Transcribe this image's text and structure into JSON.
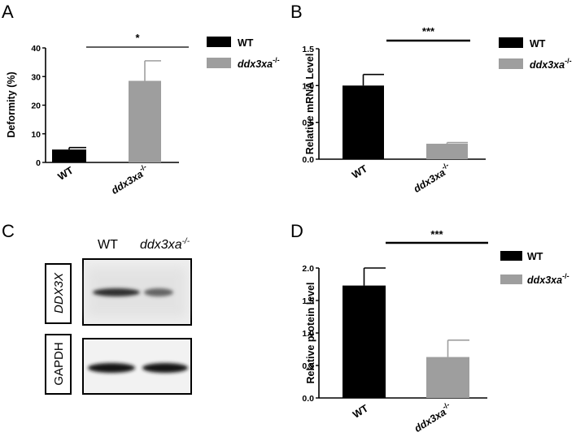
{
  "chart_data": [
    {
      "panel": "A",
      "type": "bar",
      "categories": [
        "WT",
        "ddx3xa"
      ],
      "category_superscripts": [
        "",
        "-/-"
      ],
      "values": [
        4.5,
        28.5
      ],
      "errors": [
        0.7,
        7.0
      ],
      "colors": [
        "#000000",
        "#9e9e9e"
      ],
      "ylabel": "Deformity (%)",
      "ylim": [
        0,
        40
      ],
      "yticks": [
        0,
        10,
        20,
        30,
        40
      ],
      "yticklabels": [
        "0",
        "10",
        "20",
        "30",
        "40"
      ],
      "significance": "*",
      "legend": [
        {
          "name": "WT",
          "sup": "",
          "color": "#000000"
        },
        {
          "name": "ddx3xa",
          "sup": "-/-",
          "color": "#9e9e9e"
        }
      ],
      "legend_position": "right"
    },
    {
      "panel": "B",
      "type": "bar",
      "categories": [
        "WT",
        "ddx3xa"
      ],
      "category_superscripts": [
        "",
        "-/-"
      ],
      "values": [
        1.0,
        0.21
      ],
      "errors": [
        0.15,
        0.015
      ],
      "colors": [
        "#000000",
        "#9e9e9e"
      ],
      "ylabel": "Relative  mRNA Level",
      "ylim": [
        0,
        1.5
      ],
      "yticks": [
        0,
        0.5,
        1.0,
        1.5
      ],
      "yticklabels": [
        "0.0",
        "0.5",
        "1.0",
        "1.5"
      ],
      "significance": "***",
      "legend": [
        {
          "name": "WT",
          "sup": "",
          "color": "#000000"
        },
        {
          "name": "ddx3xa",
          "sup": "-/-",
          "color": "#9e9e9e"
        }
      ],
      "legend_position": "right"
    },
    {
      "panel": "D",
      "type": "bar",
      "categories": [
        "WT",
        "ddx3xa"
      ],
      "category_superscripts": [
        "",
        "-/-"
      ],
      "values": [
        1.73,
        0.63
      ],
      "errors": [
        0.27,
        0.26
      ],
      "colors": [
        "#000000",
        "#9e9e9e"
      ],
      "ylabel": "Relative  protein level",
      "ylim": [
        0,
        2.0
      ],
      "yticks": [
        0,
        0.5,
        1.0,
        1.5,
        2.0
      ],
      "yticklabels": [
        "0.0",
        "0.5",
        "1.0",
        "1.5",
        "2.0"
      ],
      "significance": "***",
      "legend": [
        {
          "name": "WT",
          "sup": "",
          "color": "#000000"
        },
        {
          "name": "ddx3xa",
          "sup": "-/-",
          "color": "#9e9e9e"
        }
      ],
      "legend_position": "top-right"
    }
  ],
  "panel_letters": {
    "a": "A",
    "b": "B",
    "c": "C",
    "d": "D"
  },
  "blot": {
    "panel": "C",
    "lanes": [
      {
        "name": "WT",
        "sup": ""
      },
      {
        "name": "ddx3xa",
        "sup": "-/-"
      }
    ],
    "rows": [
      {
        "label": "DDX3X",
        "band_intensity": [
          0.85,
          0.55
        ]
      },
      {
        "label": "GAPDH",
        "band_intensity": [
          1.0,
          1.0
        ]
      }
    ]
  }
}
